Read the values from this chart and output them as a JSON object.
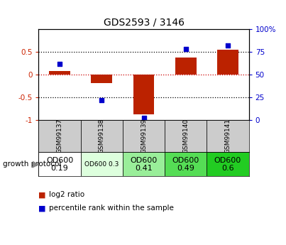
{
  "title": "GDS2593 / 3146",
  "samples": [
    "GSM99137",
    "GSM99138",
    "GSM99139",
    "GSM99140",
    "GSM99141"
  ],
  "log2_ratio": [
    0.08,
    -0.18,
    -0.88,
    0.38,
    0.55
  ],
  "percentile_rank": [
    62,
    22,
    2,
    78,
    82
  ],
  "bar_color": "#bb2200",
  "dot_color": "#0000cc",
  "ylim_left": [
    -1,
    1
  ],
  "ylim_right": [
    0,
    100
  ],
  "yticks_left": [
    -1,
    -0.5,
    0,
    0.5
  ],
  "ytick_labels_left": [
    "-1",
    "-0.5",
    "0",
    "0.5"
  ],
  "yticks_right": [
    0,
    25,
    50,
    75,
    100
  ],
  "ytick_labels_right": [
    "0",
    "25",
    "50",
    "75",
    "100%"
  ],
  "protocol_labels": [
    "OD600\n0.19",
    "OD600 0.3",
    "OD600\n0.41",
    "OD600\n0.49",
    "OD600\n0.6"
  ],
  "protocol_colors": [
    "#ffffff",
    "#ddffdd",
    "#99ee99",
    "#55dd55",
    "#22cc22"
  ],
  "protocol_text_sizes": [
    8,
    6.5,
    8,
    8,
    8
  ],
  "bg_color": "#ffffff",
  "sample_label_bg": "#cccccc",
  "legend_red_label": "log2 ratio",
  "legend_blue_label": "percentile rank within the sample"
}
